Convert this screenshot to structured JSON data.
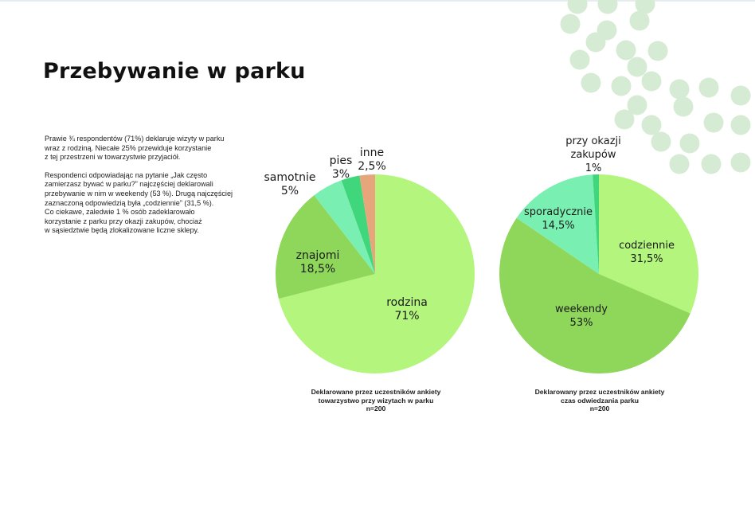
{
  "page": {
    "title": "Przebywanie w parku",
    "intro_paragraphs": [
      [
        "Prawie ¾ respondentów (71%) deklaruje wizyty w parku",
        "wraz z rodziną. Niecałe 25% przewiduje korzystanie",
        "z tej przestrzeni w towarzystwie przyjaciół."
      ],
      [
        "Respondenci odpowiadając na pytanie „Jak często",
        "zamierzasz bywać w parku?” najczęściej deklarowali",
        "przebywanie w nim w weekendy (53 %). Drugą najczęściej",
        "zaznaczoną odpowiedzią była „codziennie” (31,5 %).",
        "Co ciekawe, zaledwie 1 % osób zadeklarowało",
        "korzystanie z parku przy okazji zakupów, chociaż",
        "w sąsiedztwie będą zlokalizowane liczne sklepy."
      ]
    ],
    "colors": {
      "dots": "#d5ebd3",
      "text": "#1a1a1a"
    }
  },
  "chart_data": [
    {
      "type": "pie",
      "start_angle_deg": 0,
      "slices": [
        {
          "label": "rodzina",
          "value": 71,
          "display": "71%",
          "color": "#b3f57d"
        },
        {
          "label": "znajomi",
          "value": 18.5,
          "display": "18,5%",
          "color": "#8ed75a"
        },
        {
          "label": "samotnie",
          "value": 5,
          "display": "5%",
          "color": "#79f0b1"
        },
        {
          "label": "pies",
          "value": 3,
          "display": "3%",
          "color": "#3fd67c"
        },
        {
          "label": "inne",
          "value": 2.5,
          "display": "2,5%",
          "color": "#e7a57c"
        }
      ],
      "caption": [
        "Deklarowane przez uczestników ankiety",
        "towarzystwo przy wizytach w parku",
        "n=200"
      ]
    },
    {
      "type": "pie",
      "start_angle_deg": 0,
      "slices": [
        {
          "label": "codziennie",
          "value": 31.5,
          "display": "31,5%",
          "color": "#b3f57d"
        },
        {
          "label": "weekendy",
          "value": 53,
          "display": "53%",
          "color": "#8ed75a"
        },
        {
          "label": "sporadycznie",
          "value": 14.5,
          "display": "14,5%",
          "color": "#79f0b1"
        },
        {
          "label": "przy okazji zakupów",
          "value": 1,
          "display": "1%",
          "color": "#3fd67c"
        }
      ],
      "caption": [
        "Deklarowany przez uczestników ankiety",
        "czas odwiedzania parku",
        "n=200"
      ]
    }
  ]
}
